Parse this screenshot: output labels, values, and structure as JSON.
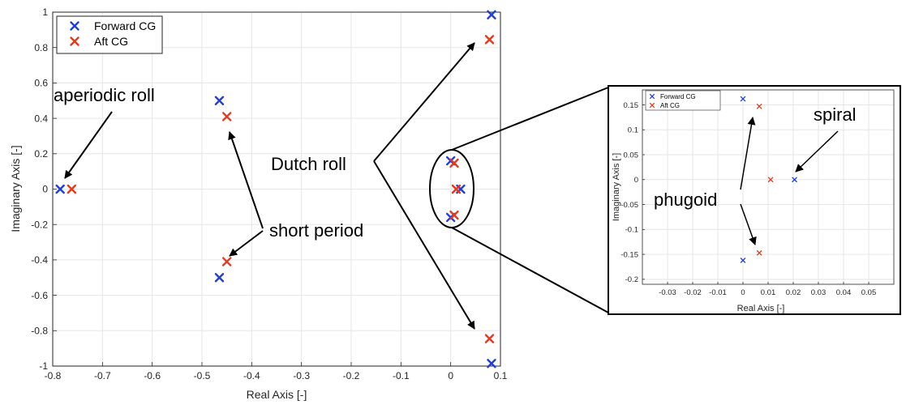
{
  "chart_data": [
    {
      "type": "scatter",
      "title": "",
      "xlabel": "Real Axis [-]",
      "ylabel": "Imaginary Axis [-]",
      "xlim": [
        -0.8,
        0.1
      ],
      "ylim": [
        -1,
        1
      ],
      "xticks": [
        -0.8,
        -0.7,
        -0.6,
        -0.5,
        -0.4,
        -0.3,
        -0.2,
        -0.1,
        0,
        0.1
      ],
      "yticks": [
        -1,
        -0.8,
        -0.6,
        -0.4,
        -0.2,
        0,
        0.2,
        0.4,
        0.6,
        0.8,
        1
      ],
      "grid": true,
      "legend_position": "top-left",
      "series": [
        {
          "name": "Forward CG",
          "color": "#1f3fd6",
          "points": [
            [
              -0.785,
              0
            ],
            [
              -0.465,
              0.5
            ],
            [
              -0.465,
              -0.5
            ],
            [
              0.0,
              0.16
            ],
            [
              0.0,
              -0.16
            ],
            [
              0.02,
              0
            ],
            [
              0.082,
              0.985
            ],
            [
              0.082,
              -0.985
            ]
          ]
        },
        {
          "name": "Aft CG",
          "color": "#e23a1f",
          "points": [
            [
              -0.762,
              0
            ],
            [
              -0.45,
              0.41
            ],
            [
              -0.45,
              -0.41
            ],
            [
              0.007,
              0.147
            ],
            [
              0.007,
              -0.147
            ],
            [
              0.011,
              0
            ],
            [
              0.078,
              0.845
            ],
            [
              0.078,
              -0.845
            ]
          ]
        }
      ],
      "annotations": [
        "aperiodic roll",
        "short period",
        "Dutch roll"
      ]
    },
    {
      "type": "scatter",
      "title": "",
      "xlabel": "Real Axis [-]",
      "ylabel": "Imaginary Axis [-]",
      "xlim": [
        -0.04,
        0.06
      ],
      "ylim": [
        -0.21,
        0.18
      ],
      "xticks": [
        -0.03,
        -0.02,
        -0.01,
        0,
        0.01,
        0.02,
        0.03,
        0.04,
        0.05
      ],
      "yticks": [
        -0.2,
        -0.15,
        -0.1,
        -0.05,
        0,
        0.05,
        0.1,
        0.15
      ],
      "grid": true,
      "legend_position": "top-left",
      "series": [
        {
          "name": "Forward CG",
          "color": "#1f3fd6",
          "points": [
            [
              0.0,
              0.162
            ],
            [
              0.0,
              -0.162
            ],
            [
              0.0205,
              0
            ]
          ]
        },
        {
          "name": "Aft CG",
          "color": "#e23a1f",
          "points": [
            [
              0.0065,
              0.147
            ],
            [
              0.0065,
              -0.147
            ],
            [
              0.011,
              0
            ]
          ]
        }
      ],
      "annotations": [
        "spiral",
        "phugoid"
      ]
    }
  ]
}
